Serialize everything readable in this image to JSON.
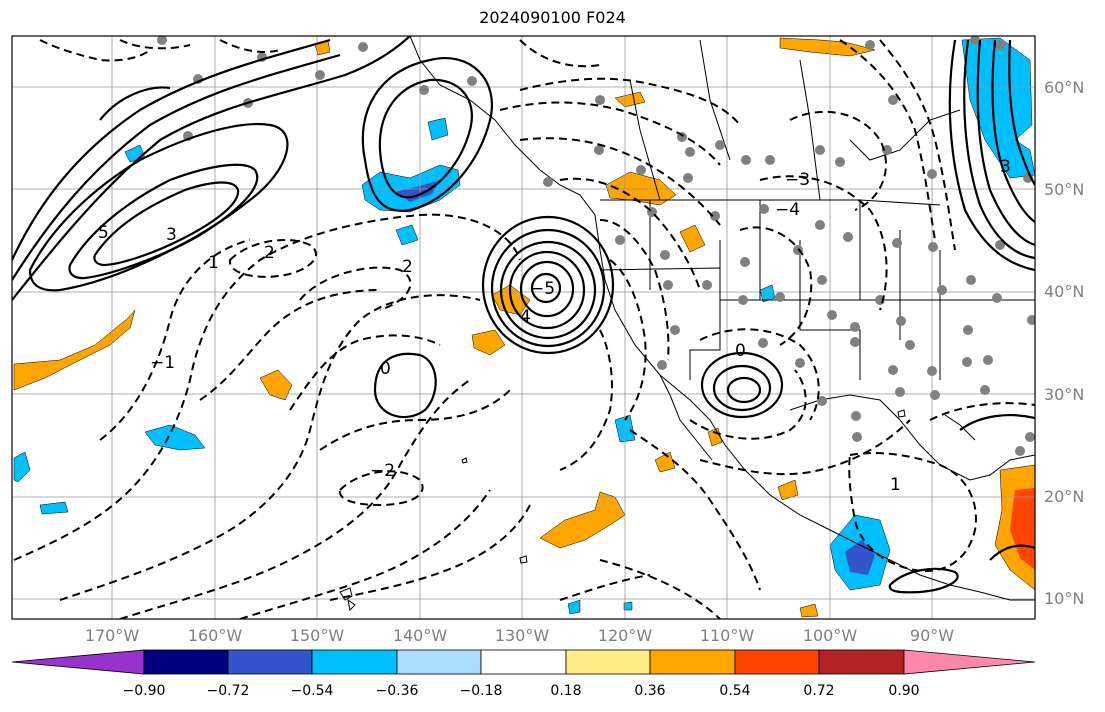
{
  "title": "2024090100 F024",
  "latitude_labels": [
    "60°N",
    "50°N",
    "40°N",
    "30°N",
    "20°N",
    "10°N"
  ],
  "longitude_labels": [
    "170°W",
    "160°W",
    "150°W",
    "140°W",
    "130°W",
    "120°W",
    "110°W",
    "100°W",
    "90°W"
  ],
  "colorbar": {
    "ticks": [
      "−0.90",
      "−0.72",
      "−0.54",
      "−0.36",
      "−0.18",
      "0.18",
      "0.36",
      "0.54",
      "0.72",
      "0.90"
    ],
    "colors": [
      "#9933cc",
      "#000080",
      "#3355cc",
      "#00bfff",
      "#aaddff",
      "#ffffff",
      "#ffee88",
      "#ffa500",
      "#ff4500",
      "#b22222",
      "#ff88aa"
    ]
  },
  "contour_labels": [
    "5",
    "3",
    "1",
    "2",
    "4",
    "−2",
    "−1",
    "0",
    "−3",
    "−5",
    "−4",
    "2",
    "3",
    "1",
    "0"
  ]
}
